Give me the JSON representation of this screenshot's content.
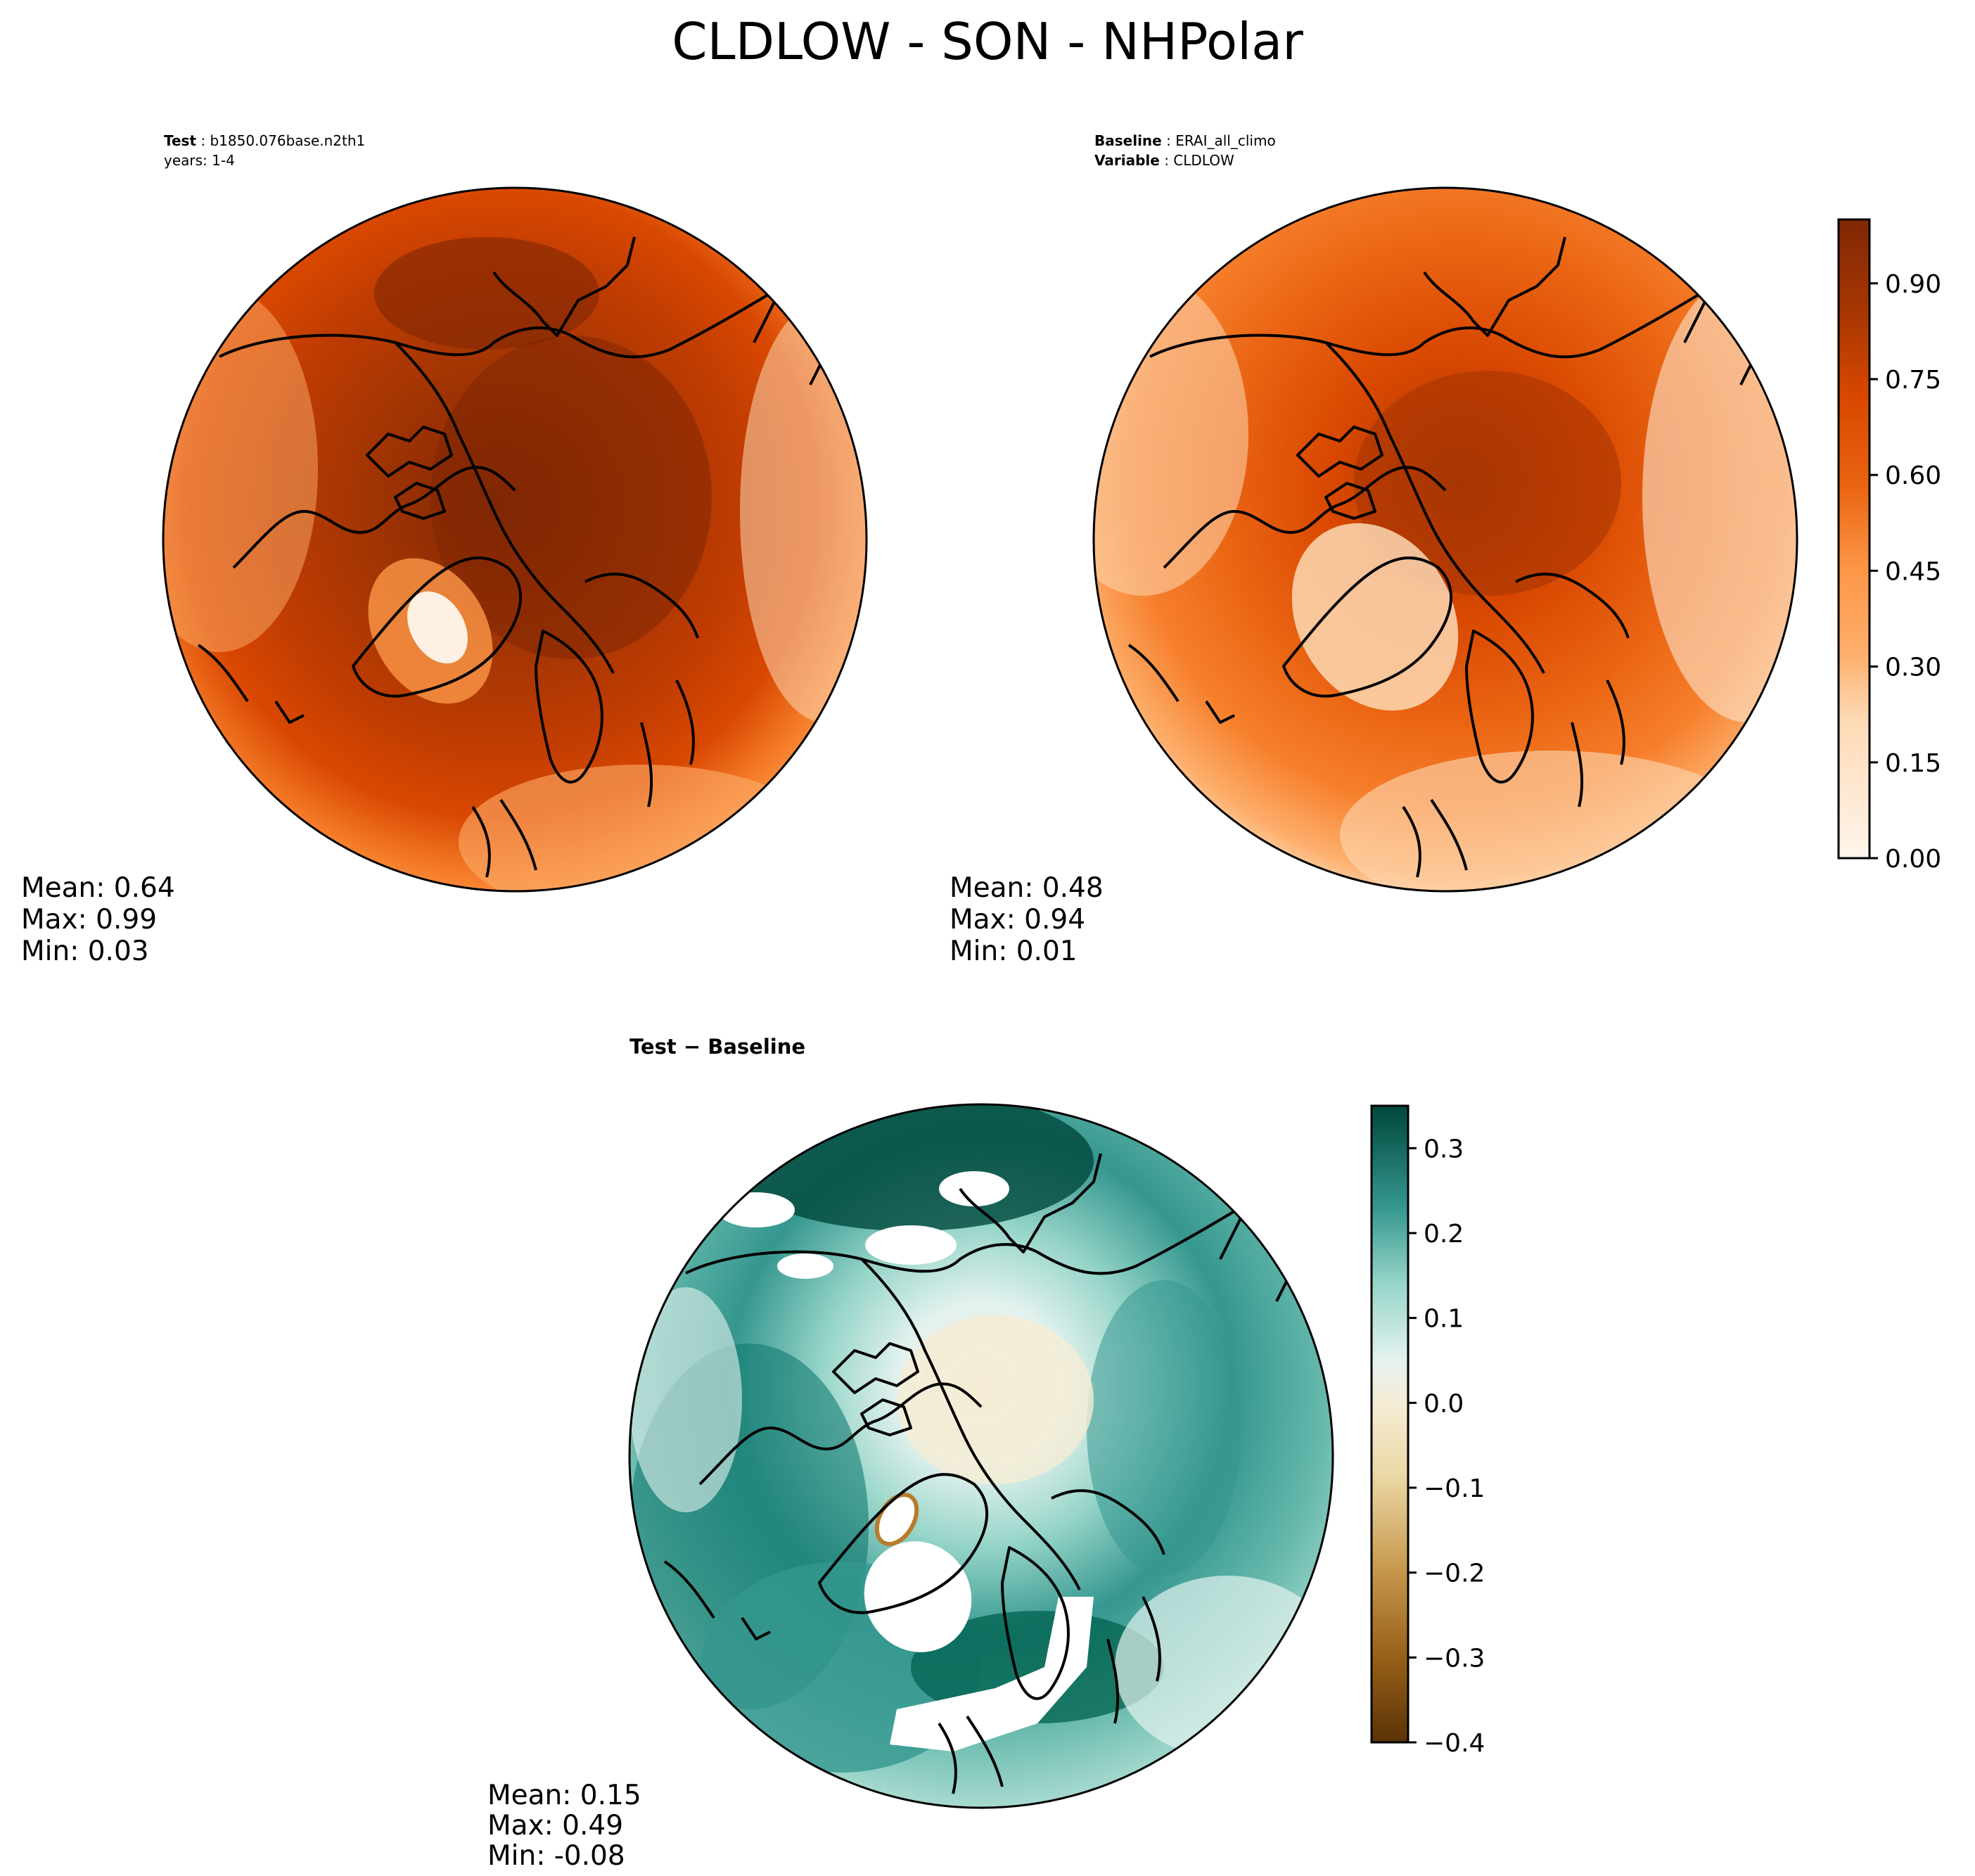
{
  "figure": {
    "title": "CLDLOW - SON - NHPolar"
  },
  "panels": {
    "test": {
      "label_bold": "Test",
      "label_value": "b1850.076base.n2th1",
      "line2": "years: 1-4",
      "stats": {
        "mean": "Mean:  0.64",
        "max": "Max:  0.99",
        "min": "Min:  0.03"
      }
    },
    "baseline": {
      "label_bold": "Baseline",
      "label_value": "ERAI_all_climo",
      "line2_bold": "Variable",
      "line2_value": "CLDLOW",
      "stats": {
        "mean": "Mean:  0.48",
        "max": "Max:  0.94",
        "min": "Min:  0.01"
      }
    },
    "diff": {
      "title": "Test − Baseline",
      "stats": {
        "mean": "Mean:  0.15",
        "max": "Max:  0.49",
        "min": "Min: -0.08"
      }
    }
  },
  "colorbars": {
    "main": {
      "ticks": [
        "0.00",
        "0.15",
        "0.30",
        "0.45",
        "0.60",
        "0.75",
        "0.90"
      ]
    },
    "diff": {
      "ticks": [
        "−0.4",
        "−0.3",
        "−0.2",
        "−0.1",
        "0.0",
        "0.1",
        "0.2",
        "0.3"
      ]
    }
  },
  "chart_data": [
    {
      "type": "heatmap",
      "title": "Test: b1850.076base.n2th1, years: 1-4",
      "projection": "North Polar Stereographic",
      "variable": "CLDLOW",
      "mean": 0.64,
      "max": 0.99,
      "min": 0.03,
      "colormap": "Oranges",
      "levels_range": [
        0.0,
        1.0
      ],
      "colorbar_ticks": [
        0.0,
        0.15,
        0.3,
        0.45,
        0.6,
        0.75,
        0.9
      ]
    },
    {
      "type": "heatmap",
      "title": "Baseline: ERAI_all_climo, Variable: CLDLOW",
      "projection": "North Polar Stereographic",
      "variable": "CLDLOW",
      "mean": 0.48,
      "max": 0.94,
      "min": 0.01,
      "colormap": "Oranges",
      "levels_range": [
        0.0,
        1.0
      ],
      "colorbar_ticks": [
        0.0,
        0.15,
        0.3,
        0.45,
        0.6,
        0.75,
        0.9
      ]
    },
    {
      "type": "heatmap",
      "title": "Test - Baseline",
      "projection": "North Polar Stereographic",
      "variable": "CLDLOW",
      "mean": 0.15,
      "max": 0.49,
      "min": -0.08,
      "colormap": "BrBG",
      "levels_range": [
        -0.4,
        0.35
      ],
      "colorbar_ticks": [
        -0.4,
        -0.3,
        -0.2,
        -0.1,
        0.0,
        0.1,
        0.2,
        0.3
      ]
    }
  ],
  "colors": {
    "oranges": [
      "#fff5eb",
      "#fee6ce",
      "#fdd9b4",
      "#fdc692",
      "#fdae6b",
      "#fd9748",
      "#f67f2c",
      "#ea6513",
      "#d94801",
      "#bf3c02",
      "#a63603",
      "#8c2c04",
      "#7f2704"
    ],
    "brbg": [
      "#5a3307",
      "#7a4a0f",
      "#9a6219",
      "#b77c2b",
      "#c99c52",
      "#dbbd7c",
      "#ebd8a6",
      "#f5ecd4",
      "#e4f2ef",
      "#c4e9e1",
      "#97d5c9",
      "#65b8ab",
      "#35978f",
      "#137a70",
      "#00614f",
      "#00473c"
    ]
  }
}
